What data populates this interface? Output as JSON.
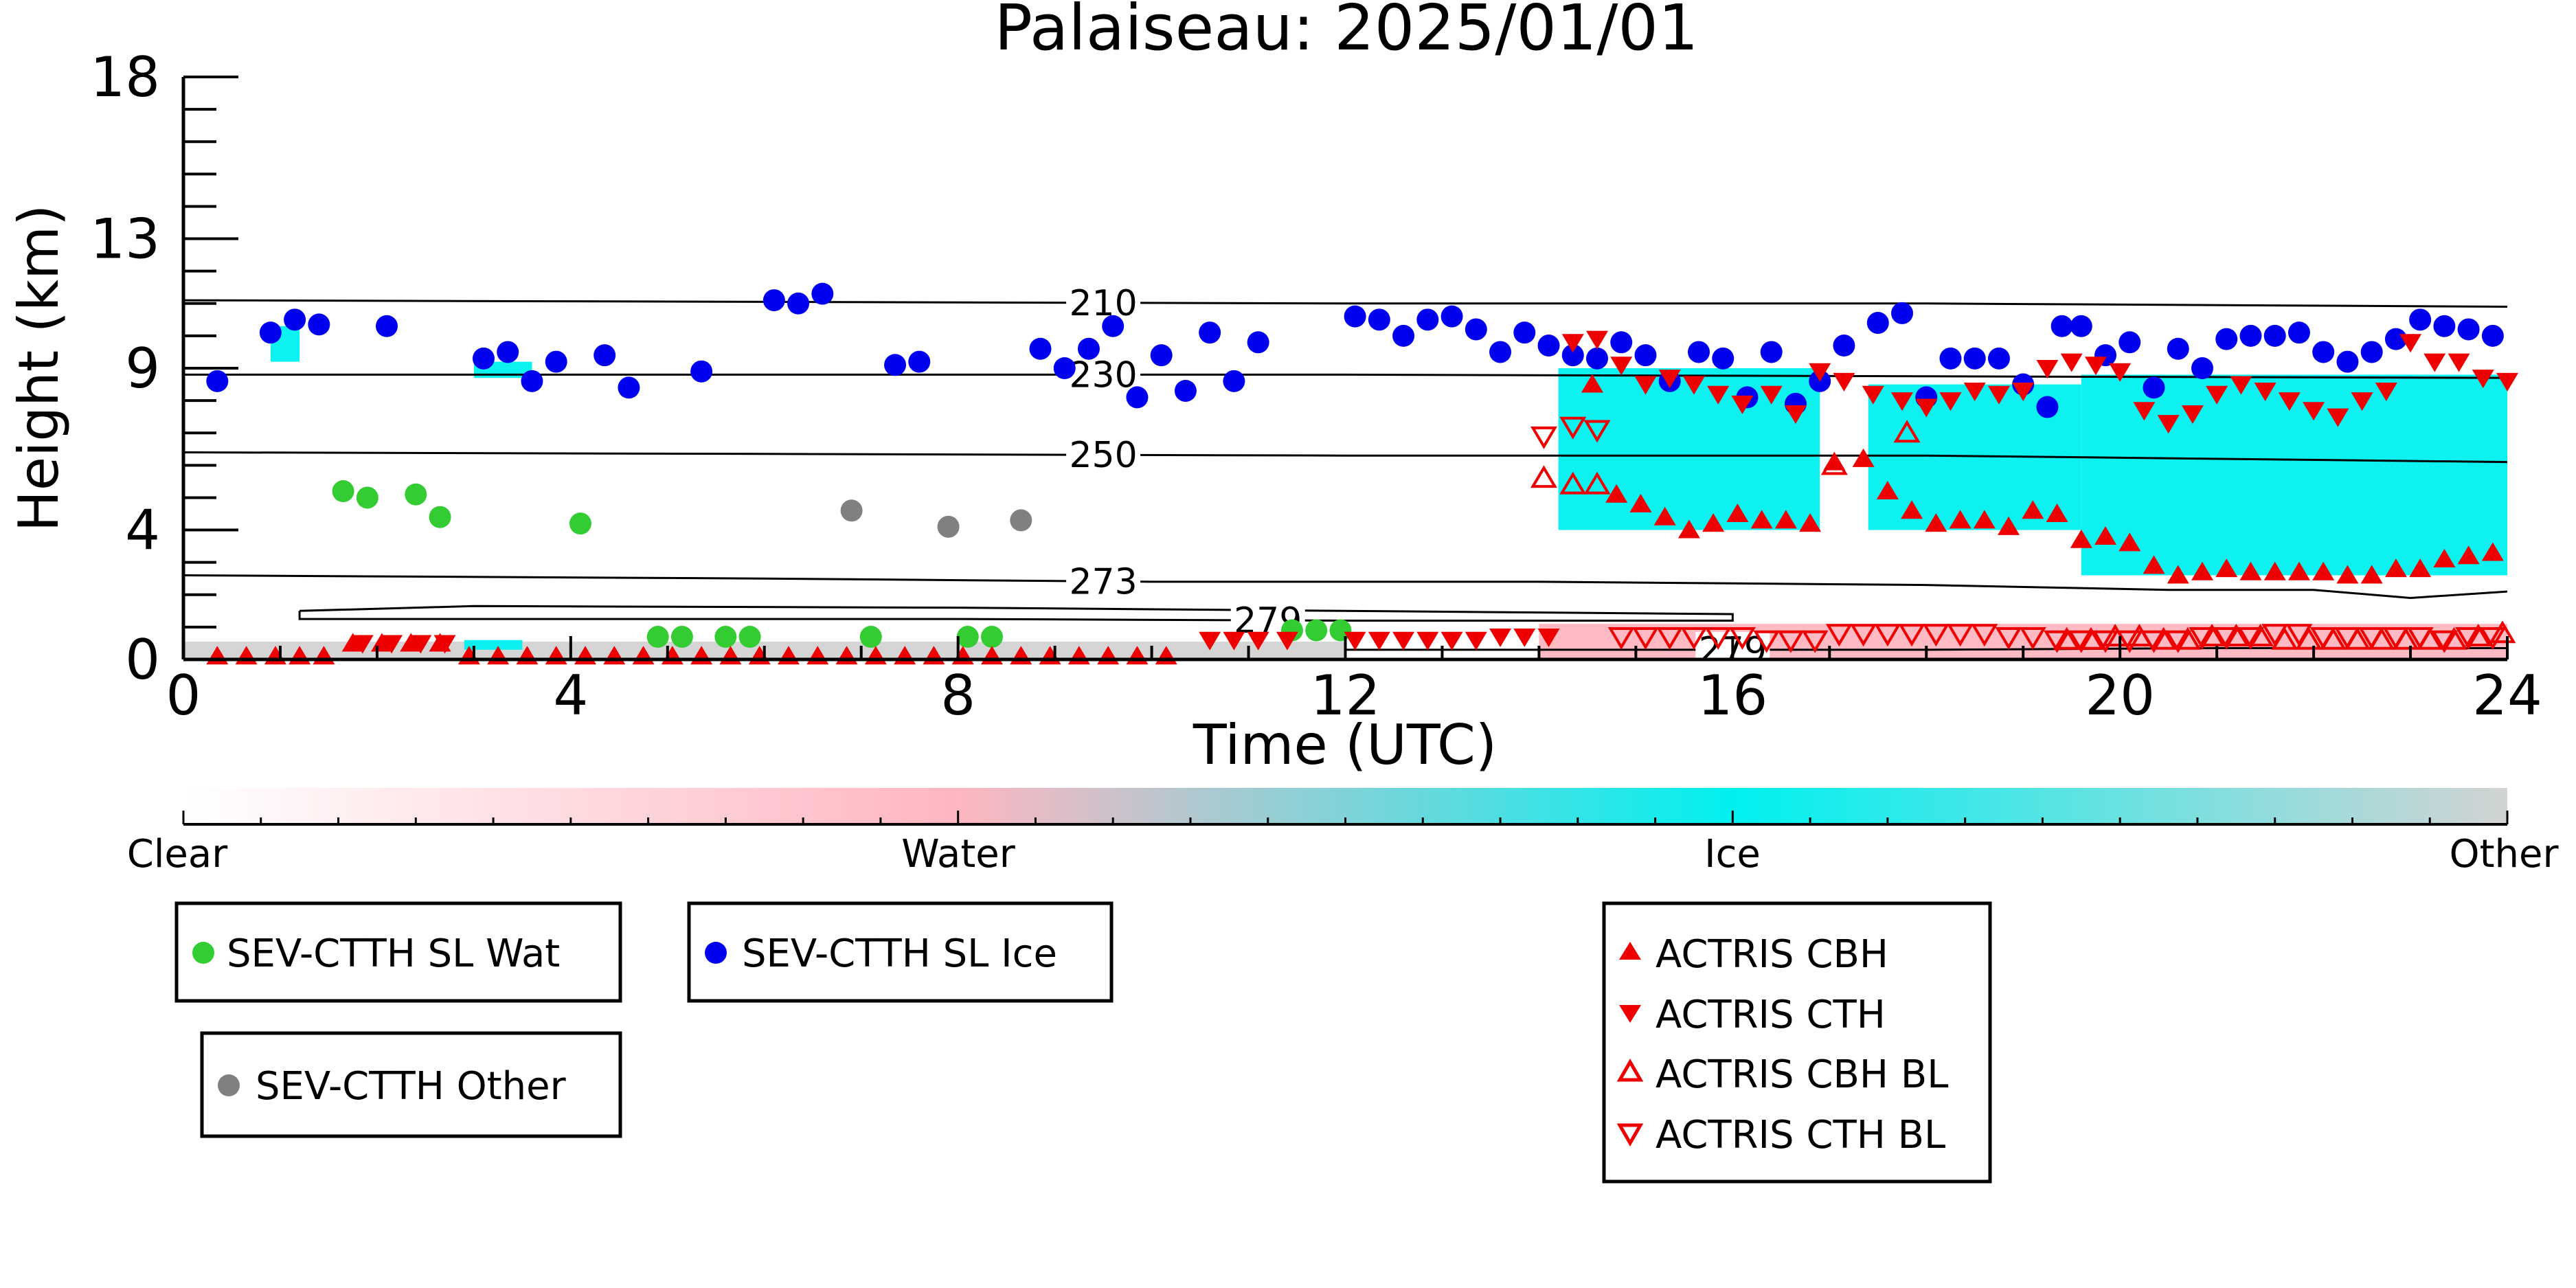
{
  "chart_data": {
    "type": "scatter",
    "title": "Palaiseau: 2025/01/01",
    "xlabel": "Time (UTC)",
    "ylabel": "Height (km)",
    "xlim": [
      0,
      24
    ],
    "ylim": [
      0,
      18
    ],
    "x_ticks": [
      0,
      4,
      8,
      12,
      16,
      20,
      24
    ],
    "y_ticks": [
      0,
      4,
      9,
      13,
      18
    ],
    "grid": false,
    "isotherms": [
      {
        "label": "210",
        "label_x": 9.5,
        "points": [
          [
            0,
            11.1
          ],
          [
            6,
            11.05
          ],
          [
            12,
            11.0
          ],
          [
            18,
            11.0
          ],
          [
            24,
            10.9
          ]
        ]
      },
      {
        "label": "230",
        "label_x": 9.5,
        "points": [
          [
            0,
            8.8
          ],
          [
            6,
            8.8
          ],
          [
            12,
            8.8
          ],
          [
            18,
            8.75
          ],
          [
            24,
            8.7
          ]
        ]
      },
      {
        "label": "250",
        "label_x": 9.5,
        "points": [
          [
            0,
            6.4
          ],
          [
            6,
            6.35
          ],
          [
            12,
            6.3
          ],
          [
            18,
            6.3
          ],
          [
            24,
            6.1
          ]
        ]
      },
      {
        "label": "273",
        "label_x": 9.5,
        "points": [
          [
            0,
            2.6
          ],
          [
            6,
            2.5
          ],
          [
            10,
            2.4
          ],
          [
            14,
            2.4
          ],
          [
            18,
            2.3
          ],
          [
            20.5,
            2.15
          ],
          [
            22,
            2.15
          ],
          [
            23,
            1.9
          ],
          [
            24,
            2.1
          ]
        ]
      },
      {
        "label": "279",
        "label_x": 11.2,
        "points": [
          [
            1.2,
            1.5
          ],
          [
            1.2,
            1.25
          ],
          [
            8,
            1.25
          ],
          [
            12,
            1.2
          ],
          [
            16,
            1.2
          ],
          [
            16,
            1.4
          ],
          [
            8,
            1.6
          ],
          [
            3,
            1.65
          ],
          [
            1.2,
            1.5
          ]
        ]
      },
      {
        "label": "279",
        "label_x": 16.0,
        "points": [
          [
            12,
            0.3
          ],
          [
            15,
            0.3
          ],
          [
            18,
            0.3
          ],
          [
            21,
            0.35
          ],
          [
            24,
            0.35
          ]
        ]
      }
    ],
    "colorbar": {
      "labels": [
        "Clear",
        "Water",
        "Ice",
        "Other"
      ],
      "colors": [
        "#ffffff",
        "#ffb6c1",
        "#00f0f0",
        "#d3d3d3"
      ]
    },
    "series": [
      {
        "name": "SEV-CTTH SL Wat",
        "marker": "circle",
        "color": "#33cc33",
        "x": [
          1.65,
          1.9,
          2.4,
          2.65,
          4.1,
          4.9,
          5.15,
          5.6,
          5.85,
          7.1,
          8.1,
          8.35,
          11.45,
          11.7,
          11.95
        ],
        "y": [
          5.2,
          5.0,
          5.1,
          4.4,
          4.2,
          0.7,
          0.7,
          0.7,
          0.7,
          0.7,
          0.7,
          0.7,
          0.9,
          0.9,
          0.9
        ]
      },
      {
        "name": "SEV-CTTH SL Ice",
        "marker": "circle",
        "color": "#0000ee",
        "x": [
          0.35,
          0.9,
          1.15,
          1.4,
          2.1,
          3.1,
          3.35,
          3.6,
          3.85,
          4.35,
          4.6,
          5.35,
          6.1,
          6.35,
          6.6,
          7.35,
          7.6,
          8.85,
          9.1,
          9.35,
          9.6,
          9.85,
          10.1,
          10.35,
          10.6,
          10.85,
          11.1,
          12.1,
          12.35,
          12.6,
          12.85,
          13.1,
          13.35,
          13.6,
          13.85,
          14.1,
          14.35,
          14.6,
          14.85,
          15.1,
          15.35,
          15.65,
          15.9,
          16.15,
          16.4,
          16.65,
          16.9,
          17.15,
          17.5,
          17.75,
          18.0,
          18.25,
          18.5,
          18.75,
          19.0,
          19.25,
          19.4,
          19.6,
          19.85,
          20.1,
          20.35,
          20.6,
          20.85,
          21.1,
          21.35,
          21.6,
          21.85,
          22.1,
          22.35,
          22.6,
          22.85,
          23.1,
          23.35,
          23.6,
          23.85
        ],
        "y": [
          8.6,
          10.1,
          10.5,
          10.35,
          10.3,
          9.3,
          9.5,
          8.6,
          9.2,
          9.4,
          8.4,
          8.9,
          11.1,
          11.0,
          11.3,
          9.1,
          9.2,
          9.6,
          9.0,
          9.6,
          10.3,
          8.1,
          9.4,
          8.3,
          10.1,
          8.6,
          9.8,
          10.6,
          10.5,
          10.0,
          10.5,
          10.6,
          10.2,
          9.5,
          10.1,
          9.7,
          9.4,
          9.3,
          9.8,
          9.4,
          8.6,
          9.5,
          9.3,
          8.1,
          9.5,
          7.9,
          8.6,
          9.7,
          10.4,
          10.7,
          8.1,
          9.3,
          9.3,
          9.3,
          8.5,
          7.8,
          10.3,
          10.3,
          9.4,
          9.8,
          8.4,
          9.6,
          9.0,
          9.9,
          10.0,
          10.0,
          10.1,
          9.5,
          9.2,
          9.5,
          9.9,
          10.5,
          10.3,
          10.2,
          10.0
        ]
      },
      {
        "name": "SEV-CTTH Other",
        "marker": "circle",
        "color": "#808080",
        "x": [
          6.9,
          7.9,
          8.65
        ],
        "y": [
          4.6,
          4.1,
          4.3
        ]
      },
      {
        "name": "ACTRIS CBH",
        "marker": "triangle-up",
        "color": "#ee0000",
        "fill": true,
        "x": [
          0.35,
          0.65,
          0.95,
          1.2,
          1.45,
          1.75,
          2.05,
          2.35,
          2.65,
          2.95,
          3.25,
          3.55,
          3.85,
          4.15,
          4.45,
          4.75,
          5.05,
          5.35,
          5.65,
          5.95,
          6.25,
          6.55,
          6.85,
          7.15,
          7.45,
          7.75,
          8.05,
          8.35,
          8.65,
          8.95,
          9.25,
          9.55,
          9.85,
          10.15,
          14.55,
          14.8,
          15.05,
          15.3,
          15.55,
          15.8,
          16.05,
          16.3,
          16.55,
          16.8,
          17.05,
          17.35,
          17.6,
          17.85,
          18.1,
          18.35,
          18.6,
          18.85,
          19.1,
          19.35,
          19.6,
          19.85,
          20.1,
          20.35,
          20.6,
          20.85,
          21.1,
          21.35,
          21.6,
          21.85,
          22.1,
          22.35,
          22.6,
          22.85,
          23.1,
          23.35,
          23.6,
          23.85
        ],
        "y": [
          0.1,
          0.1,
          0.1,
          0.1,
          0.1,
          0.5,
          0.5,
          0.5,
          0.5,
          0.1,
          0.1,
          0.1,
          0.1,
          0.1,
          0.1,
          0.1,
          0.1,
          0.1,
          0.1,
          0.1,
          0.1,
          0.1,
          0.1,
          0.1,
          0.1,
          0.1,
          0.1,
          0.1,
          0.1,
          0.1,
          0.1,
          0.1,
          0.1,
          0.1,
          8.5,
          5.1,
          4.8,
          4.4,
          4.0,
          4.2,
          4.5,
          4.3,
          4.3,
          4.2,
          6.1,
          6.2,
          5.2,
          4.6,
          4.2,
          4.3,
          4.3,
          4.1,
          4.6,
          4.5,
          3.7,
          3.8,
          3.6,
          2.9,
          2.6,
          2.7,
          2.8,
          2.7,
          2.7,
          2.7,
          2.7,
          2.6,
          2.6,
          2.8,
          2.8,
          3.1,
          3.2,
          3.3
        ]
      },
      {
        "name": "ACTRIS CTH",
        "marker": "triangle-down",
        "color": "#ee0000",
        "fill": true,
        "x": [
          1.85,
          2.15,
          2.45,
          2.7,
          10.6,
          10.85,
          11.1,
          11.4,
          12.1,
          12.35,
          12.6,
          12.85,
          13.1,
          13.35,
          13.6,
          13.85,
          14.1,
          14.35,
          14.6,
          14.85,
          15.1,
          15.35,
          15.6,
          15.85,
          16.1,
          16.4,
          16.65,
          16.9,
          17.15,
          17.45,
          17.75,
          18.0,
          18.25,
          18.5,
          18.75,
          19.0,
          19.25,
          19.5,
          19.75,
          20.0,
          20.25,
          20.5,
          20.75,
          21.0,
          21.25,
          21.5,
          21.75,
          22.0,
          22.25,
          22.5,
          22.75,
          23.0,
          23.25,
          23.5,
          23.75,
          24.0
        ],
        "y": [
          0.5,
          0.5,
          0.5,
          0.5,
          0.6,
          0.6,
          0.6,
          0.6,
          0.6,
          0.6,
          0.6,
          0.6,
          0.6,
          0.6,
          0.7,
          0.7,
          0.7,
          9.8,
          9.9,
          9.1,
          8.5,
          8.7,
          8.5,
          8.2,
          7.9,
          8.2,
          7.6,
          8.9,
          8.6,
          8.2,
          8.0,
          7.8,
          8.0,
          8.3,
          8.2,
          8.3,
          9.0,
          9.2,
          9.1,
          8.9,
          7.7,
          7.3,
          7.6,
          8.2,
          8.5,
          8.3,
          8.0,
          7.7,
          7.5,
          8.0,
          8.3,
          9.8,
          9.2,
          9.2,
          8.7,
          8.6
        ]
      },
      {
        "name": "ACTRIS CBH BL",
        "marker": "triangle-up",
        "color": "#ee0000",
        "fill": false,
        "x": [
          14.05,
          14.35,
          14.6,
          17.05,
          17.8,
          19.45,
          19.7,
          19.95,
          20.2,
          20.45,
          20.7,
          20.95,
          21.2,
          21.45,
          21.7,
          21.95,
          22.2,
          22.45,
          22.7,
          22.95,
          23.2,
          23.45,
          23.7,
          23.95
        ],
        "y": [
          5.6,
          5.4,
          5.4,
          6.0,
          7.0,
          0.6,
          0.6,
          0.7,
          0.7,
          0.6,
          0.6,
          0.7,
          0.7,
          0.7,
          0.6,
          0.6,
          0.6,
          0.6,
          0.6,
          0.6,
          0.6,
          0.6,
          0.7,
          0.8
        ]
      },
      {
        "name": "ACTRIS CTH BL",
        "marker": "triangle-down",
        "color": "#ee0000",
        "fill": false,
        "x": [
          14.05,
          14.35,
          14.6,
          14.85,
          15.1,
          15.35,
          15.6,
          15.85,
          16.1,
          16.35,
          16.6,
          16.85,
          17.1,
          17.35,
          17.6,
          17.85,
          18.1,
          18.35,
          18.6,
          18.85,
          19.1,
          19.35,
          19.6,
          19.85,
          20.1,
          20.35,
          20.6,
          20.85,
          21.1,
          21.35,
          21.6,
          21.85,
          22.1,
          22.35,
          22.6,
          22.85,
          23.1,
          23.35,
          23.6,
          23.85
        ],
        "y": [
          6.9,
          7.2,
          7.1,
          0.7,
          0.7,
          0.7,
          0.7,
          0.7,
          0.7,
          0.6,
          0.6,
          0.6,
          0.8,
          0.8,
          0.8,
          0.8,
          0.8,
          0.8,
          0.8,
          0.7,
          0.7,
          0.6,
          0.6,
          0.6,
          0.6,
          0.6,
          0.6,
          0.7,
          0.7,
          0.7,
          0.8,
          0.8,
          0.7,
          0.7,
          0.7,
          0.7,
          0.7,
          0.6,
          0.7,
          0.7
        ]
      }
    ],
    "cloud_mask": [
      {
        "class": "Other",
        "color": "#d3d3d3",
        "x_range": [
          0,
          12
        ],
        "y_range": [
          0.0,
          0.55
        ]
      },
      {
        "class": "Water",
        "color": "#ffb6c1",
        "x_range": [
          14,
          24
        ],
        "y_range": [
          0.0,
          1.1
        ]
      },
      {
        "class": "Ice",
        "color": "#00f0f0",
        "x_range": [
          14.2,
          16.9
        ],
        "y_range": [
          4.0,
          9.0
        ]
      },
      {
        "class": "Ice",
        "color": "#00f0f0",
        "x_range": [
          17.4,
          19.6
        ],
        "y_range": [
          4.0,
          8.5
        ]
      },
      {
        "class": "Ice",
        "color": "#00f0f0",
        "x_range": [
          19.6,
          24
        ],
        "y_range": [
          2.6,
          8.8
        ]
      },
      {
        "class": "Ice",
        "color": "#00f0f0",
        "x_range": [
          0.9,
          1.2
        ],
        "y_range": [
          9.2,
          10.3
        ]
      },
      {
        "class": "Ice",
        "color": "#00f0f0",
        "x_range": [
          3.0,
          3.6
        ],
        "y_range": [
          8.7,
          9.2
        ]
      },
      {
        "class": "Ice",
        "color": "#00f0f0",
        "x_range": [
          2.9,
          3.5
        ],
        "y_range": [
          0.3,
          0.6
        ]
      }
    ]
  }
}
